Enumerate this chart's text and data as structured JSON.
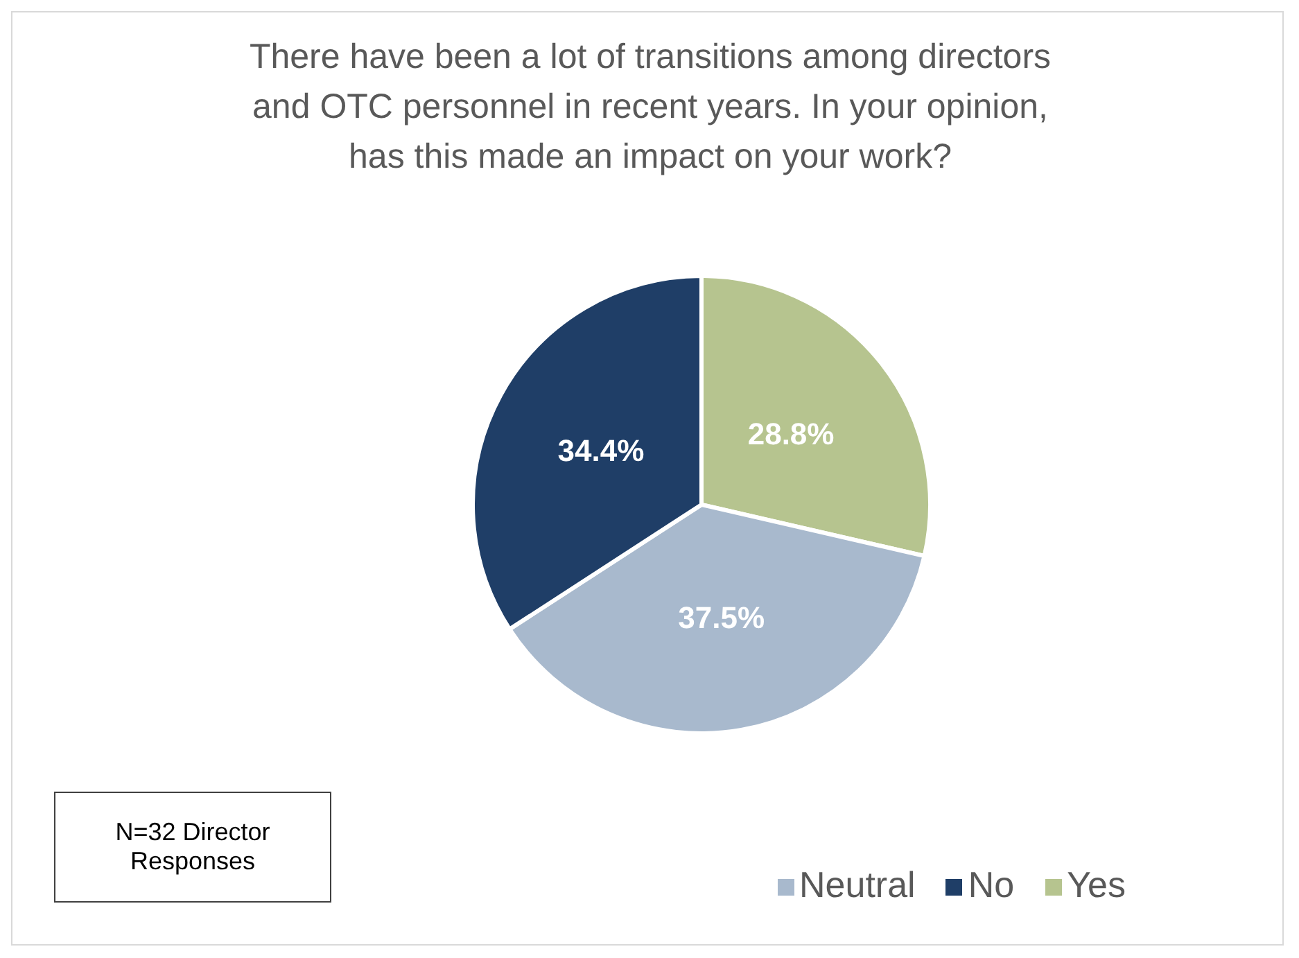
{
  "chart_data": {
    "type": "pie",
    "title": "There have been a lot of transitions among directors and OTC personnel in recent years. In your opinion, has this made an impact on your work?",
    "categories": [
      "Yes",
      "Neutral",
      "No"
    ],
    "values": [
      28.8,
      37.5,
      34.4
    ],
    "value_labels": [
      "28.8%",
      "37.5%",
      "34.4%"
    ],
    "colors": [
      "#b6c48f",
      "#a8b9cd",
      "#1f3e67"
    ],
    "legend": "bottom right",
    "annotations": [
      "N=32 Director Responses"
    ]
  }
}
